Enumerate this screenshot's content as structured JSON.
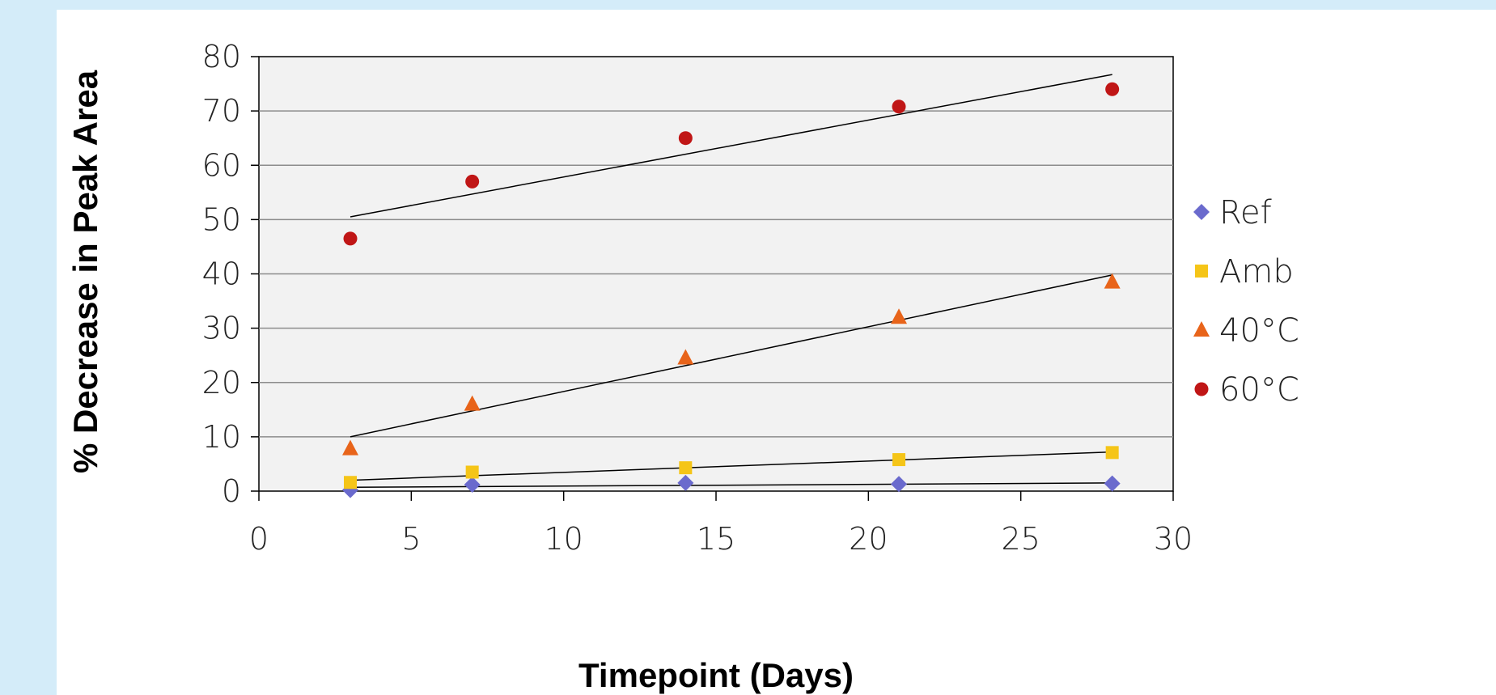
{
  "chart_data": {
    "type": "scatter",
    "title": "",
    "xlabel": "Timepoint (Days)",
    "ylabel": "% Decrease in Peak Area",
    "xlim": [
      0,
      30
    ],
    "ylim": [
      0,
      80
    ],
    "x_ticks": [
      "0",
      "5",
      "10",
      "15",
      "20",
      "25",
      "30"
    ],
    "y_ticks": [
      "0",
      "10",
      "20",
      "30",
      "40",
      "50",
      "60",
      "70",
      "80"
    ],
    "grid": "horizontal",
    "legend_position": "right",
    "series": [
      {
        "name": "Ref",
        "marker": "diamond",
        "color": "#6a6acd",
        "x": [
          3,
          7,
          14,
          21,
          28
        ],
        "y": [
          0.2,
          1.2,
          1.5,
          1.3,
          1.4
        ],
        "trendline": {
          "x": [
            3,
            28
          ],
          "y": [
            0.7,
            1.5
          ]
        }
      },
      {
        "name": "Amb",
        "marker": "square",
        "color": "#f5c518",
        "x": [
          3,
          7,
          14,
          21,
          28
        ],
        "y": [
          1.6,
          3.5,
          4.3,
          5.8,
          7.1
        ],
        "trendline": {
          "x": [
            3,
            28
          ],
          "y": [
            2.0,
            7.2
          ]
        }
      },
      {
        "name": "40°C",
        "marker": "triangle",
        "color": "#e8641a",
        "x": [
          3,
          7,
          14,
          21,
          28
        ],
        "y": [
          7.8,
          16.0,
          24.5,
          32.0,
          38.5
        ],
        "trendline": {
          "x": [
            3,
            28
          ],
          "y": [
            10.0,
            39.8
          ]
        }
      },
      {
        "name": "60°C",
        "marker": "circle",
        "color": "#c01616",
        "x": [
          3,
          7,
          14,
          21,
          28
        ],
        "y": [
          46.5,
          57.0,
          65.0,
          70.8,
          74.0
        ],
        "trendline": {
          "x": [
            3,
            28
          ],
          "y": [
            50.5,
            76.7
          ]
        }
      }
    ]
  }
}
